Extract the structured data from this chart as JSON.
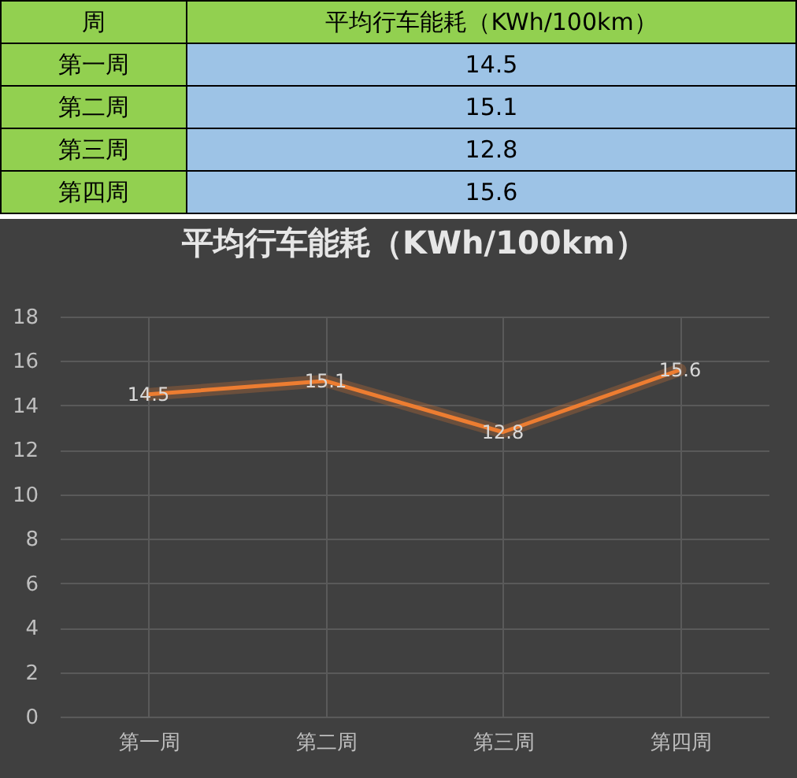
{
  "chart_data": [
    {
      "type": "other",
      "title": "平均行车能耗（KWh/100km）",
      "annotations": [
        "周"
      ],
      "categories": [
        "第一周",
        "第二周",
        "第三周",
        "第四周"
      ],
      "values": [
        14.5,
        15.1,
        12.8,
        15.6
      ],
      "data_labels": true
    },
    {
      "type": "line",
      "title": "平均行车能耗（KWh/100km）",
      "categories": [
        "第一周",
        "第二周",
        "第三周",
        "第四周"
      ],
      "series": [
        {
          "color": "#ed7d31",
          "values": [
            14.5,
            15.1,
            12.8,
            15.6
          ]
        }
      ],
      "ylim": [
        0,
        18
      ],
      "yticks": [
        0,
        2,
        4,
        6,
        8,
        10,
        12,
        14,
        16,
        18
      ],
      "grid": true,
      "data_labels": true,
      "marker": "none",
      "line_style": "solid"
    }
  ]
}
